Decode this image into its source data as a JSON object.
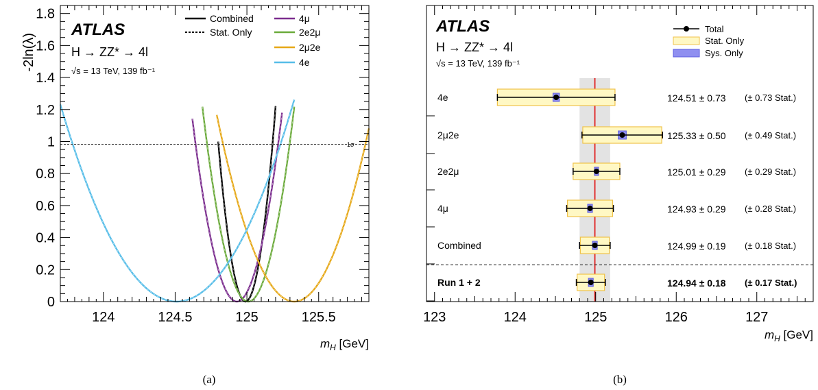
{
  "chart_data": [
    {
      "type": "line",
      "panel_label": "(a)",
      "experiment": "ATLAS",
      "process": "H → ZZ* → 4l",
      "energy_lumi": "√s = 13 TeV, 139 fb⁻¹",
      "xlabel": "m_H [GeV]",
      "ylabel": "-2ln(λ)",
      "xlim": [
        123.7,
        125.85
      ],
      "ylim": [
        0,
        1.85
      ],
      "x_ticks": [
        "124",
        "124.5",
        "125",
        "125.5"
      ],
      "y_ticks": [
        "0",
        "0.2",
        "0.4",
        "0.6",
        "0.8",
        "1",
        "1.2",
        "1.4",
        "1.6",
        "1.8"
      ],
      "reference_line": {
        "y": 1,
        "label": "1σ"
      },
      "legend_styles": [
        {
          "label": "Combined",
          "style": "solid",
          "color": "#000000"
        },
        {
          "label": "Stat. Only",
          "style": "dashed",
          "color": "#000000"
        }
      ],
      "series": [
        {
          "name": "Combined",
          "color": "#000000",
          "mu": 124.99,
          "sigma": 0.19,
          "range": [
            124.8,
            125.2
          ]
        },
        {
          "name": "4μ",
          "color": "#7b2d8e",
          "mu": 124.93,
          "sigma": 0.29,
          "range": [
            124.62,
            125.245
          ]
        },
        {
          "name": "2e2μ",
          "color": "#6aaa3a",
          "mu": 125.01,
          "sigma": 0.29,
          "range": [
            124.69,
            125.33
          ]
        },
        {
          "name": "2μ2e",
          "color": "#e6a817",
          "mu": 125.33,
          "sigma": 0.5,
          "range": [
            124.79,
            125.85
          ]
        },
        {
          "name": "4e",
          "color": "#56bde8",
          "mu": 124.51,
          "sigma": 0.73,
          "range": [
            123.7,
            125.33
          ]
        }
      ]
    },
    {
      "type": "scatter",
      "panel_label": "(b)",
      "experiment": "ATLAS",
      "process": "H → ZZ* → 4l",
      "energy_lumi": "√s = 13 TeV, 139 fb⁻¹",
      "xlabel": "m_H [GeV]",
      "xlim": [
        122.9,
        127.7
      ],
      "x_ticks": [
        "123",
        "124",
        "125",
        "126",
        "127"
      ],
      "legend": [
        "Total",
        "Stat. Only",
        "Sys. Only"
      ],
      "band": {
        "center": 124.99,
        "half_width": 0.19
      },
      "rows": [
        {
          "label": "4e",
          "value": 124.51,
          "total": 0.73,
          "stat": 0.73,
          "sys": 0.04,
          "value_text": "124.51 ± 0.73",
          "stat_text": "(± 0.73 Stat.)",
          "bold": false
        },
        {
          "label": "2μ2e",
          "value": 125.33,
          "total": 0.5,
          "stat": 0.49,
          "sys": 0.05,
          "value_text": "125.33 ± 0.50",
          "stat_text": "(± 0.49 Stat.)",
          "bold": false
        },
        {
          "label": "2e2μ",
          "value": 125.01,
          "total": 0.29,
          "stat": 0.29,
          "sys": 0.02,
          "value_text": "125.01 ± 0.29",
          "stat_text": "(± 0.29 Stat.)",
          "bold": false
        },
        {
          "label": "4μ",
          "value": 124.93,
          "total": 0.29,
          "stat": 0.28,
          "sys": 0.03,
          "value_text": "124.93 ± 0.29",
          "stat_text": "(± 0.28 Stat.)",
          "bold": false
        },
        {
          "label": "Combined",
          "value": 124.99,
          "total": 0.19,
          "stat": 0.18,
          "sys": 0.03,
          "value_text": "124.99 ± 0.19",
          "stat_text": "(± 0.18 Stat.)",
          "bold": false
        },
        {
          "label": "Run 1 + 2",
          "value": 124.94,
          "total": 0.18,
          "stat": 0.17,
          "sys": 0.03,
          "value_text": "124.94 ± 0.18",
          "stat_text": "(± 0.17 Stat.)",
          "bold": true
        }
      ]
    }
  ],
  "captions": [
    "(a)",
    "(b)"
  ]
}
